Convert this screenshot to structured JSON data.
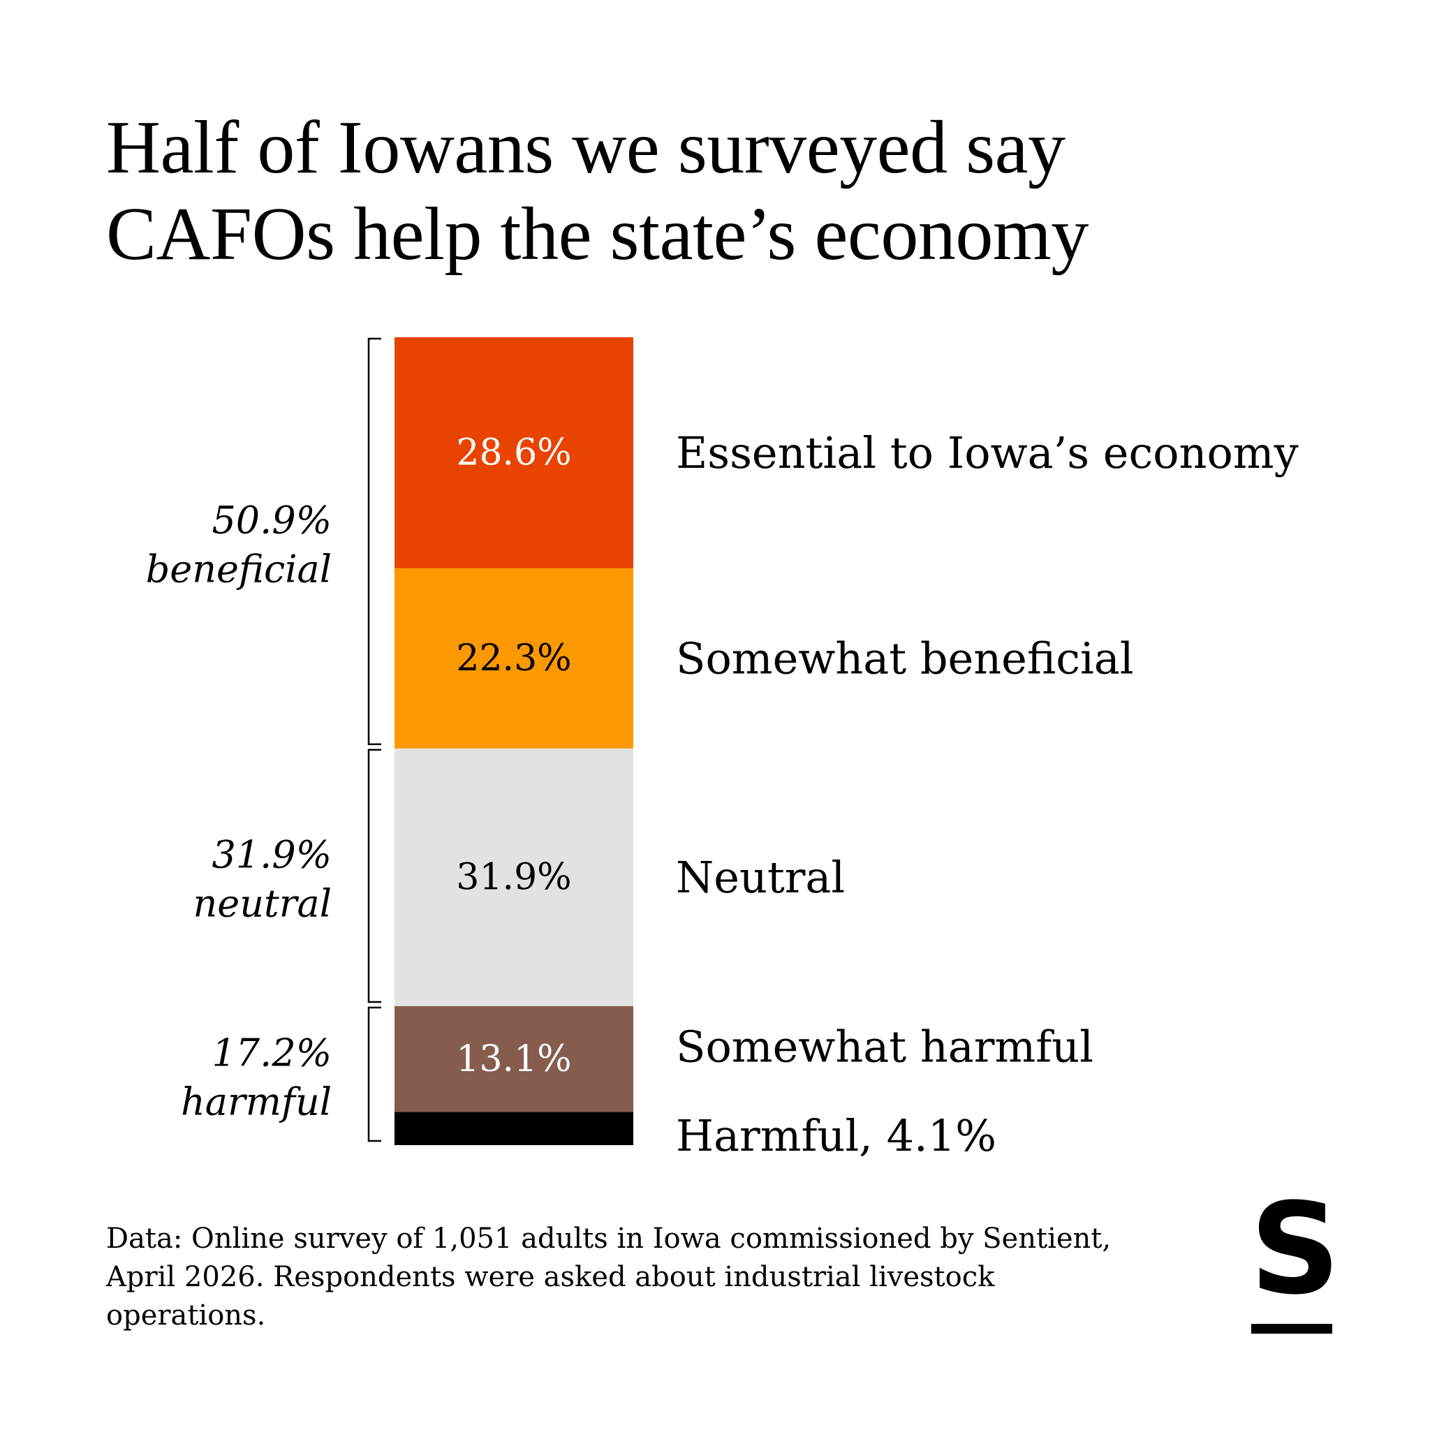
{
  "title": {
    "line1": "Half of Iowans we surveyed say",
    "line2": "CAFOs help the state’s economy"
  },
  "chart_data": {
    "type": "bar",
    "stacked": true,
    "orientation": "vertical",
    "title": "Half of Iowans we surveyed say CAFOs help the state’s economy",
    "unit": "%",
    "ylim": [
      0,
      100
    ],
    "segments": [
      {
        "key": "essential",
        "value": 28.6,
        "value_label": "28.6%",
        "label": "Essential to Iowa’s economy",
        "color": "#E84300",
        "text_color": "#ffffff"
      },
      {
        "key": "somewhat-beneficial",
        "value": 22.3,
        "value_label": "22.3%",
        "label": "Somewhat beneficial",
        "color": "#FC9800",
        "text_color": "#000000"
      },
      {
        "key": "neutral",
        "value": 31.9,
        "value_label": "31.9%",
        "label": "Neutral",
        "color": "#E2E2E2",
        "text_color": "#000000"
      },
      {
        "key": "somewhat-harmful",
        "value": 13.1,
        "value_label": "13.1%",
        "label": "Somewhat harmful",
        "color": "#865C4E",
        "text_color": "#ffffff"
      },
      {
        "key": "harmful",
        "value": 4.1,
        "value_label": "",
        "label": "Harmful, 4.1%",
        "color": "#000000",
        "text_color": "#ffffff"
      }
    ],
    "groups": [
      {
        "key": "beneficial",
        "value": 50.9,
        "line1": "50.9%",
        "line2": "beneficial",
        "from": 0,
        "to": 1
      },
      {
        "key": "neutral",
        "value": 31.9,
        "line1": "31.9%",
        "line2": "neutral",
        "from": 2,
        "to": 2
      },
      {
        "key": "harmful",
        "value": 17.2,
        "line1": "17.2%",
        "line2": "harmful",
        "from": 3,
        "to": 4
      }
    ]
  },
  "footnote": "Data: Online survey of 1,051 adults in Iowa commissioned by Sentient, April 2026. Respondents were asked about industrial livestock operations.",
  "logo": {
    "letter": "S"
  }
}
